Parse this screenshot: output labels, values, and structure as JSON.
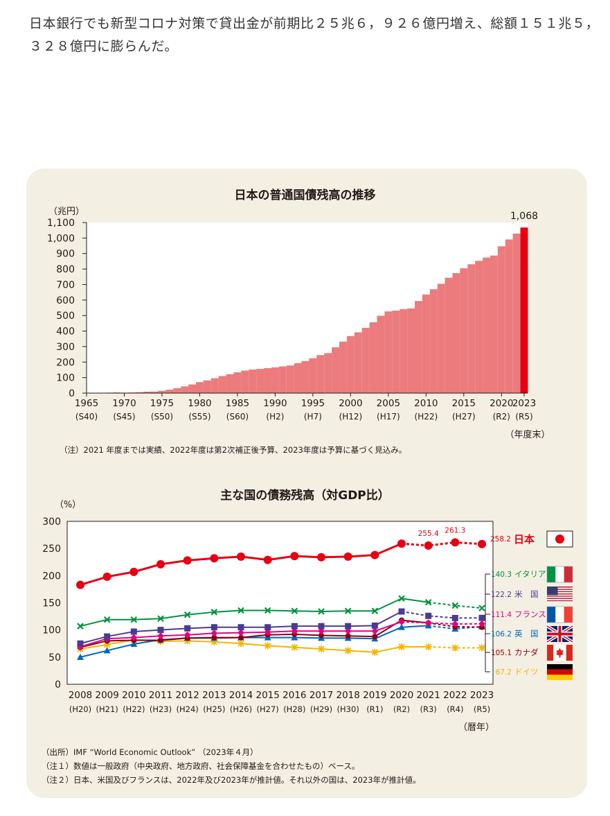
{
  "intro_text": "日本銀行でも新型コロナ対策で貸出金が前期比２５兆６，９２６億円増え、総額１５１兆５，３２８億円に膨らんだ。",
  "colors": {
    "panel_bg": "#f3efe3",
    "bar": "#ec7b7d",
    "bar_highlight": "#e60012",
    "japan": "#e60012",
    "italy": "#00923f",
    "usa": "#4b3a94",
    "france": "#e4007f",
    "uk": "#0068b7",
    "canada": "#8b0012",
    "germany": "#f5b400"
  },
  "chart_data": [
    {
      "type": "bar",
      "title": "日本の普通国債残高の推移",
      "ylabel": "（兆円）",
      "xlabel": "（年度末）",
      "ylim": [
        0,
        1100
      ],
      "yticks": [
        0,
        100,
        200,
        300,
        400,
        500,
        600,
        700,
        800,
        900,
        1000,
        1100
      ],
      "ytick_labels": [
        "0",
        "100",
        "200",
        "300",
        "400",
        "500",
        "600",
        "700",
        "800",
        "900",
        "1,000",
        "1,100"
      ],
      "xticks": [
        {
          "year": 1965,
          "label": "1965",
          "era": "(S40)"
        },
        {
          "year": 1970,
          "label": "1970",
          "era": "(S45)"
        },
        {
          "year": 1975,
          "label": "1975",
          "era": "(S50)"
        },
        {
          "year": 1980,
          "label": "1980",
          "era": "(S55)"
        },
        {
          "year": 1985,
          "label": "1985",
          "era": "(S60)"
        },
        {
          "year": 1990,
          "label": "1990",
          "era": "(H2)"
        },
        {
          "year": 1995,
          "label": "1995",
          "era": "(H7)"
        },
        {
          "year": 2000,
          "label": "2000",
          "era": "(H12)"
        },
        {
          "year": 2005,
          "label": "2005",
          "era": "(H17)"
        },
        {
          "year": 2010,
          "label": "2010",
          "era": "(H22)"
        },
        {
          "year": 2015,
          "label": "2015",
          "era": "(H27)"
        },
        {
          "year": 2020,
          "label": "2020",
          "era": "(R2)"
        },
        {
          "year": 2023,
          "label": "2023",
          "era": "(R5)"
        }
      ],
      "years": [
        1965,
        1966,
        1967,
        1968,
        1969,
        1970,
        1971,
        1972,
        1973,
        1974,
        1975,
        1976,
        1977,
        1978,
        1979,
        1980,
        1981,
        1982,
        1983,
        1984,
        1985,
        1986,
        1987,
        1988,
        1989,
        1990,
        1991,
        1992,
        1993,
        1994,
        1995,
        1996,
        1997,
        1998,
        1999,
        2000,
        2001,
        2002,
        2003,
        2004,
        2005,
        2006,
        2007,
        2008,
        2009,
        2010,
        2011,
        2012,
        2013,
        2014,
        2015,
        2016,
        2017,
        2018,
        2019,
        2020,
        2021,
        2022,
        2023
      ],
      "values": [
        0.2,
        0.9,
        2,
        3,
        4,
        3,
        4,
        6,
        9,
        10,
        15,
        22,
        32,
        43,
        56,
        71,
        82,
        96,
        110,
        122,
        134,
        145,
        152,
        156,
        161,
        166,
        172,
        178,
        193,
        207,
        225,
        245,
        258,
        295,
        332,
        368,
        392,
        421,
        457,
        499,
        527,
        532,
        541,
        546,
        594,
        636,
        670,
        705,
        744,
        774,
        805,
        831,
        853,
        874,
        887,
        947,
        991,
        1029,
        1068
      ],
      "highlight_label": "1,068",
      "note": "（注）2021 年度までは実績、2022年度は第2次補正後予算、2023年度は予算に基づく見込み。"
    },
    {
      "type": "line",
      "title": "主な国の債務残高（対GDP比）",
      "ylabel": "（%）",
      "xlabel": "（暦年）",
      "ylim": [
        0,
        300
      ],
      "yticks": [
        0,
        50,
        100,
        150,
        200,
        250,
        300
      ],
      "x": [
        2008,
        2009,
        2010,
        2011,
        2012,
        2013,
        2014,
        2015,
        2016,
        2017,
        2018,
        2019,
        2020,
        2021,
        2022,
        2023
      ],
      "x_labels": [
        "2008",
        "2009",
        "2010",
        "2011",
        "2012",
        "2013",
        "2014",
        "2015",
        "2016",
        "2017",
        "2018",
        "2019",
        "2020",
        "2021",
        "2022",
        "2023"
      ],
      "x_era": [
        "(H20)",
        "(H21)",
        "(H22)",
        "(H23)",
        "(H24)",
        "(H25)",
        "(H26)",
        "(H27)",
        "(H28)",
        "(H29)",
        "(H30)",
        "(R1)",
        "(R2)",
        "(R3)",
        "(R4)",
        "(R5)"
      ],
      "series": [
        {
          "key": "japan",
          "name": "日本",
          "marker": "circle",
          "values": [
            183,
            198,
            207,
            221,
            228,
            232,
            235,
            229,
            236,
            234,
            235,
            238,
            259,
            255.4,
            261.3,
            258.2
          ],
          "estimate_from": 13,
          "end_label": "258.2",
          "point_labels": [
            {
              "index": 13,
              "text": "255.4"
            },
            {
              "index": 14,
              "text": "261.3"
            }
          ],
          "flag": "japan-flag-icon"
        },
        {
          "key": "italy",
          "name": "イタリア",
          "marker": "x",
          "values": [
            107,
            119,
            119,
            121,
            128,
            133,
            136,
            136,
            135,
            134,
            135,
            135,
            158,
            151,
            145,
            140.3
          ],
          "estimate_from": 14,
          "end_label": "140.3",
          "flag": "italy-flag-icon"
        },
        {
          "key": "usa",
          "name": "米　国",
          "marker": "square",
          "values": [
            75,
            88,
            97,
            100,
            103,
            105,
            105,
            105,
            107,
            107,
            107,
            108,
            134,
            126,
            122,
            122.2
          ],
          "estimate_from": 13,
          "end_label": "122.2",
          "flag": "usa-flag-icon"
        },
        {
          "key": "france",
          "name": "フランス",
          "marker": "diamond",
          "values": [
            69,
            84,
            86,
            89,
            91,
            94,
            95,
            96,
            98,
            98,
            98,
            98,
            115,
            113,
            111,
            111.4
          ],
          "estimate_from": 13,
          "end_label": "111.4",
          "flag": "france-flag-icon"
        },
        {
          "key": "uk",
          "name": "英　国",
          "marker": "triangle",
          "values": [
            50,
            62,
            74,
            82,
            85,
            85,
            86,
            86,
            86,
            85,
            85,
            84,
            105,
            108,
            102,
            106.2
          ],
          "estimate_from": 14,
          "end_label": "106.2",
          "flag": "uk-flag-icon"
        },
        {
          "key": "canada",
          "name": "カナダ",
          "marker": "circle-small",
          "values": [
            68,
            80,
            81,
            81,
            85,
            86,
            86,
            91,
            92,
            90,
            89,
            88,
            118,
            113,
            106,
            105.1
          ],
          "estimate_from": 14,
          "end_label": "105.1",
          "flag": "canada-flag-icon"
        },
        {
          "key": "germany",
          "name": "ドイツ",
          "marker": "star",
          "values": [
            65,
            73,
            82,
            79,
            80,
            78,
            75,
            71,
            68,
            65,
            62,
            59,
            69,
            69,
            67,
            67.2
          ],
          "estimate_from": 14,
          "end_label": "67.2",
          "flag": "germany-flag-icon"
        }
      ],
      "notes": [
        "（出所）IMF “World Economic Outlook” （2023年４月）",
        "（注１）数値は一般政府（中央政府、地方政府、社会保障基金を合わせたもの）ベース。",
        "（注２）日本、米国及びフランスは、2022年及び2023年が推計値。それ以外の国は、2023年が推計値。"
      ]
    }
  ]
}
